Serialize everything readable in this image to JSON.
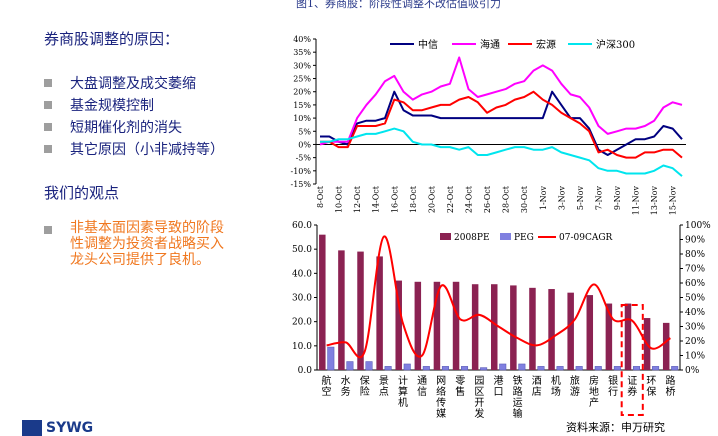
{
  "figure_title": "图1、券商股：阶段性调整不改估值吸引力",
  "left": {
    "section1_title": "券商股调整的原因：",
    "bullets": [
      "大盘调整及成交萎缩",
      "基金规模控制",
      "短期催化剂的消失",
      "其它原因（小非减持等）"
    ],
    "section2_title": "我们的观点",
    "viewpoint_lines": [
      "非基本面因素导致的阶段",
      "性调整为投资者战略买入",
      "龙头公司提供了良机。"
    ]
  },
  "source": "资料来源：申万研究",
  "logo_text": "SYWG",
  "colors": {
    "zhongxin": "#000080",
    "haitong": "#ff00ff",
    "hongyuan": "#ff0000",
    "husheng": "#00e5ee",
    "pe_bar": "#8b2252",
    "peg_bar": "#8080e0",
    "cagr": "#ff0000"
  },
  "chart_data": [
    {
      "type": "line",
      "x": [
        "8-Oct",
        "9-Oct",
        "10-Oct",
        "11-Oct",
        "12-Oct",
        "13-Oct",
        "14-Oct",
        "15-Oct",
        "16-Oct",
        "17-Oct",
        "18-Oct",
        "19-Oct",
        "20-Oct",
        "21-Oct",
        "22-Oct",
        "23-Oct",
        "24-Oct",
        "25-Oct",
        "26-Oct",
        "27-Oct",
        "28-Oct",
        "29-Oct",
        "30-Oct",
        "31-Oct",
        "1-Nov",
        "2-Nov",
        "3-Nov",
        "4-Nov",
        "5-Nov",
        "6-Nov",
        "7-Nov",
        "8-Nov",
        "9-Nov",
        "10-Nov",
        "11-Nov",
        "12-Nov",
        "13-Nov",
        "14-Nov",
        "15-Nov",
        "16-Nov"
      ],
      "xtick_labels": [
        "8-Oct",
        "10-Oct",
        "12-Oct",
        "14-Oct",
        "16-Oct",
        "18-Oct",
        "20-Oct",
        "22-Oct",
        "24-Oct",
        "26-Oct",
        "28-Oct",
        "30-Oct",
        "1-Nov",
        "3-Nov",
        "5-Nov",
        "7-Nov",
        "9-Nov",
        "11-Nov",
        "13-Nov",
        "15-Nov"
      ],
      "yticks": [
        "40%",
        "35%",
        "30%",
        "25%",
        "20%",
        "15%",
        "10%",
        "5%",
        "0%",
        "-5%",
        "-10%",
        "-15%"
      ],
      "ylim": [
        -15,
        40
      ],
      "legend_position": "top",
      "series": [
        {
          "name": "中信",
          "values": [
            3,
            3,
            1,
            0,
            8,
            9,
            9,
            10,
            20,
            13,
            11,
            11,
            11,
            10,
            10,
            10,
            10,
            10,
            10,
            10,
            10,
            10,
            10,
            10,
            10,
            20,
            15,
            10,
            10,
            6,
            -2,
            -4,
            -2,
            0,
            2,
            2,
            3,
            7,
            6,
            2
          ]
        },
        {
          "name": "海通",
          "values": [
            0,
            1,
            1,
            1,
            10,
            15,
            19,
            24,
            26,
            20,
            17,
            19,
            20,
            22,
            23,
            33,
            21,
            18,
            19,
            20,
            21,
            23,
            24,
            28,
            30,
            28,
            23,
            19,
            18,
            14,
            7,
            4,
            5,
            6,
            6,
            7,
            9,
            14,
            16,
            15
          ]
        },
        {
          "name": "宏源",
          "values": [
            1,
            1,
            -1,
            -1,
            7,
            7,
            7,
            8,
            17,
            16,
            13,
            13,
            14,
            15,
            15,
            17,
            18,
            16,
            12,
            14,
            15,
            17,
            18,
            20,
            17,
            15,
            12,
            10,
            8,
            5,
            -3,
            -2,
            -4,
            -5,
            -5,
            -3,
            -3,
            -2,
            -2,
            -5
          ]
        },
        {
          "name": "沪深300",
          "values": [
            1,
            1,
            2,
            2,
            3,
            4,
            4,
            5,
            6,
            5,
            1,
            0,
            0,
            -1,
            -1,
            -2,
            -1,
            -4,
            -4,
            -3,
            -2,
            -1,
            -1,
            -2,
            -2,
            -1,
            -3,
            -4,
            -5,
            -6,
            -9,
            -10,
            -10,
            -11,
            -11,
            -11,
            -10,
            -8,
            -9,
            -12
          ]
        }
      ]
    },
    {
      "type": "bar",
      "categories": [
        "航空",
        "水务",
        "保险",
        "景点",
        "计算机",
        "通信",
        "网络传媒",
        "零售",
        "园区开发",
        "港口",
        "铁路运输",
        "酒店",
        "机场",
        "旅游",
        "房地产",
        "银行",
        "证券",
        "环保",
        "路桥"
      ],
      "y1lim": [
        0,
        60
      ],
      "y1ticks": [
        "60.0",
        "50.0",
        "40.0",
        "30.0",
        "20.0",
        "10.0",
        "0.0"
      ],
      "y2lim": [
        0,
        100
      ],
      "y2ticks": [
        "100%",
        "90%",
        "80%",
        "70%",
        "60%",
        "50%",
        "40%",
        "30%",
        "20%",
        "10%",
        "0%"
      ],
      "legend_position": "top",
      "highlight_category": "证券",
      "series": [
        {
          "name": "2008PE",
          "values": [
            56,
            49.5,
            49,
            47,
            37,
            36.5,
            36.5,
            36.5,
            35.5,
            35.5,
            35,
            34,
            33.5,
            32,
            31,
            27.5,
            27.5,
            21.5,
            19.5
          ]
        },
        {
          "name": "PEG",
          "values": [
            9.5,
            3.5,
            3.5,
            1.5,
            2.5,
            1.5,
            1.5,
            1.5,
            1,
            2.5,
            2.5,
            1.5,
            1.5,
            1.5,
            1.5,
            1.5,
            1.5,
            1.5,
            1.5
          ]
        },
        {
          "name": "07-09CAGR",
          "values": [
            17,
            19,
            13,
            92,
            32,
            10,
            58,
            35,
            38,
            30,
            22,
            17,
            24,
            35,
            59,
            35,
            34,
            15,
            22
          ]
        }
      ]
    }
  ]
}
